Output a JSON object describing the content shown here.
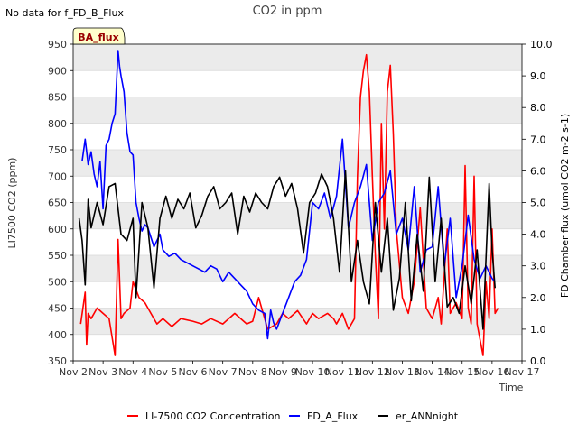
{
  "chart_data": {
    "type": "line",
    "title": "CO2 in ppm",
    "top_left_note": "No data for f_FD_B_Flux",
    "badge": "BA_flux",
    "xlabel": "Time",
    "ylabel_left": "LI7500 CO2 (ppm)",
    "ylabel_right": "FD Chamber flux (umol CO2 m-2 s-1)",
    "x_ticks": [
      "Nov 2",
      "Nov 3",
      "Nov 4",
      "Nov 5",
      "Nov 6",
      "Nov 7",
      "Nov 8",
      "Nov 9",
      "Nov 10",
      "Nov 11",
      "Nov 12",
      "Nov 13",
      "Nov 14",
      "Nov 15",
      "Nov 16",
      "Nov 17"
    ],
    "xlim_days": [
      2,
      17
    ],
    "ylim_left": [
      350,
      950
    ],
    "yticks_left": [
      350,
      400,
      450,
      500,
      550,
      600,
      650,
      700,
      750,
      800,
      850,
      900,
      950
    ],
    "ylim_right": [
      0,
      10
    ],
    "yticks_right": [
      "0.0",
      "1.0",
      "2.0",
      "3.0",
      "4.0",
      "5.0",
      "6.0",
      "7.0",
      "8.0",
      "9.0",
      "10.0"
    ],
    "grid": true,
    "legend_position": "bottom-center",
    "colors": {
      "band": "#ebebeb",
      "li7500": "#ff0000",
      "fd_flux": "#0000ff",
      "er": "#000000"
    },
    "series": [
      {
        "name": "LI-7500 CO2 Concentration",
        "axis": "left",
        "color": "#ff0000",
        "x": [
          2.25,
          2.4,
          2.45,
          2.5,
          2.6,
          2.8,
          3.0,
          3.2,
          3.4,
          3.5,
          3.6,
          3.7,
          3.9,
          4.0,
          4.2,
          4.4,
          4.6,
          4.8,
          5.0,
          5.3,
          5.6,
          6.0,
          6.3,
          6.6,
          7.0,
          7.4,
          7.8,
          8.0,
          8.2,
          8.5,
          8.8,
          9.0,
          9.2,
          9.5,
          9.8,
          10.0,
          10.2,
          10.5,
          10.7,
          10.8,
          10.9,
          11.0,
          11.2,
          11.4,
          11.5,
          11.6,
          11.7,
          11.8,
          11.9,
          12.0,
          12.1,
          12.2,
          12.3,
          12.4,
          12.5,
          12.6,
          12.7,
          12.8,
          13.0,
          13.2,
          13.4,
          13.6,
          13.8,
          14.0,
          14.2,
          14.3,
          14.5,
          14.6,
          14.8,
          15.0,
          15.1,
          15.2,
          15.3,
          15.4,
          15.5,
          15.7,
          15.8,
          15.9,
          16.0,
          16.1,
          16.2
        ],
        "y": [
          420,
          480,
          380,
          440,
          430,
          450,
          440,
          430,
          360,
          580,
          430,
          440,
          450,
          500,
          470,
          460,
          440,
          420,
          430,
          415,
          430,
          425,
          420,
          430,
          420,
          440,
          420,
          425,
          470,
          410,
          420,
          440,
          430,
          445,
          420,
          440,
          430,
          440,
          430,
          420,
          430,
          440,
          410,
          430,
          700,
          850,
          900,
          930,
          860,
          700,
          550,
          430,
          800,
          600,
          860,
          910,
          780,
          600,
          470,
          440,
          500,
          640,
          450,
          430,
          470,
          420,
          600,
          440,
          460,
          430,
          720,
          450,
          420,
          700,
          420,
          360,
          500,
          430,
          600,
          440,
          450
        ]
      },
      {
        "name": "FD_A_Flux",
        "axis": "right",
        "color": "#0000ff",
        "x": [
          2.3,
          2.4,
          2.5,
          2.6,
          2.7,
          2.8,
          2.9,
          3.0,
          3.1,
          3.2,
          3.3,
          3.4,
          3.5,
          3.55,
          3.6,
          3.7,
          3.8,
          3.9,
          4.0,
          4.1,
          4.2,
          4.3,
          4.4,
          4.5,
          4.7,
          4.9,
          5.0,
          5.2,
          5.4,
          5.6,
          5.8,
          6.0,
          6.2,
          6.4,
          6.6,
          6.8,
          7.0,
          7.2,
          7.4,
          7.6,
          7.8,
          8.0,
          8.2,
          8.4,
          8.5,
          8.6,
          8.7,
          8.8,
          9.0,
          9.2,
          9.4,
          9.6,
          9.8,
          10.0,
          10.2,
          10.4,
          10.6,
          10.8,
          11.0,
          11.2,
          11.4,
          11.6,
          11.8,
          12.0,
          12.2,
          12.4,
          12.6,
          12.8,
          13.0,
          13.2,
          13.4,
          13.6,
          13.8,
          14.0,
          14.2,
          14.4,
          14.6,
          14.8,
          15.0,
          15.2,
          15.4,
          15.6,
          15.8,
          16.0,
          16.1
        ],
        "y": [
          6.3,
          7.0,
          6.2,
          6.6,
          5.9,
          5.5,
          6.3,
          4.8,
          6.8,
          7.0,
          7.5,
          7.8,
          9.8,
          9.3,
          9.0,
          8.5,
          7.2,
          6.6,
          6.5,
          5.0,
          4.5,
          4.1,
          4.3,
          4.2,
          3.6,
          4.0,
          3.5,
          3.3,
          3.4,
          3.2,
          3.1,
          3.0,
          2.9,
          2.8,
          3.0,
          2.9,
          2.5,
          2.8,
          2.6,
          2.4,
          2.2,
          1.8,
          1.6,
          1.5,
          0.7,
          1.6,
          1.2,
          1.0,
          1.5,
          2.0,
          2.5,
          2.7,
          3.2,
          5.0,
          4.8,
          5.3,
          4.5,
          5.2,
          7.0,
          4.2,
          5.0,
          5.5,
          6.2,
          3.8,
          5.0,
          5.3,
          6.0,
          4.0,
          4.5,
          3.5,
          5.5,
          2.8,
          3.5,
          3.6,
          5.5,
          3.0,
          4.5,
          2.0,
          3.0,
          4.6,
          3.2,
          2.6,
          3.0,
          2.6,
          2.5
        ]
      },
      {
        "name": "er_ANNnight",
        "axis": "right",
        "color": "#000000",
        "x": [
          2.2,
          2.3,
          2.4,
          2.5,
          2.6,
          2.8,
          3.0,
          3.2,
          3.4,
          3.6,
          3.8,
          4.0,
          4.1,
          4.3,
          4.5,
          4.7,
          4.9,
          5.1,
          5.3,
          5.5,
          5.7,
          5.9,
          6.1,
          6.3,
          6.5,
          6.7,
          6.9,
          7.1,
          7.3,
          7.5,
          7.7,
          7.9,
          8.1,
          8.3,
          8.5,
          8.7,
          8.9,
          9.1,
          9.3,
          9.5,
          9.7,
          9.9,
          10.1,
          10.3,
          10.5,
          10.7,
          10.9,
          11.1,
          11.3,
          11.5,
          11.7,
          11.9,
          12.1,
          12.3,
          12.5,
          12.7,
          12.9,
          13.1,
          13.3,
          13.5,
          13.7,
          13.9,
          14.1,
          14.3,
          14.5,
          14.7,
          14.9,
          15.1,
          15.3,
          15.5,
          15.7,
          15.9,
          16.0,
          16.1
        ],
        "y": [
          4.5,
          3.8,
          2.4,
          5.1,
          4.2,
          5.0,
          4.3,
          5.5,
          5.6,
          4.0,
          3.8,
          4.5,
          2.0,
          5.0,
          4.2,
          2.3,
          4.5,
          5.2,
          4.5,
          5.1,
          4.8,
          5.3,
          4.2,
          4.6,
          5.2,
          5.5,
          4.8,
          5.0,
          5.3,
          4.0,
          5.2,
          4.7,
          5.3,
          5.0,
          4.8,
          5.5,
          5.8,
          5.2,
          5.6,
          4.8,
          3.4,
          5.0,
          5.3,
          5.9,
          5.5,
          4.5,
          2.8,
          6.0,
          2.5,
          3.8,
          2.5,
          1.8,
          5.0,
          2.8,
          4.5,
          1.6,
          2.6,
          5.0,
          1.9,
          4.0,
          2.2,
          5.8,
          2.5,
          4.5,
          1.7,
          2.0,
          1.5,
          3.0,
          1.8,
          3.5,
          1.0,
          5.6,
          3.5,
          2.3
        ]
      }
    ]
  }
}
